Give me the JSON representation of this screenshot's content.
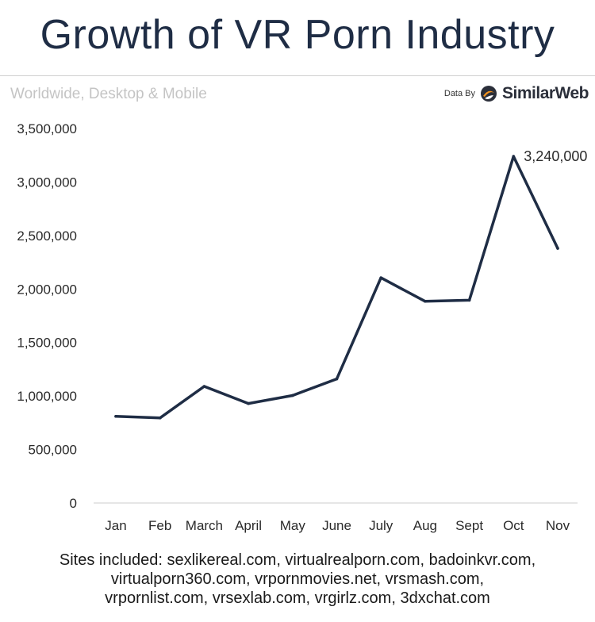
{
  "title": "Growth of VR Porn Industry",
  "subtitle": "Worldwide, Desktop & Mobile",
  "source": {
    "prefix": "Data By",
    "brand": "SimilarWeb",
    "brand_color": "#f7941d"
  },
  "footer": {
    "line1": "Sites included: sexlikereal.com, virtualrealporn.com, badoinkvr.com,",
    "line2": "virtualporn360.com, vrpornmovies.net, vrsmash.com,",
    "line3": "vrpornlist.com, vrsexlab.com, vrgirlz.com, 3dxchat.com"
  },
  "chart_data": {
    "type": "line",
    "title": "Growth of VR Porn Industry",
    "subtitle": "Worldwide, Desktop & Mobile",
    "xlabel": "",
    "ylabel": "",
    "categories": [
      "Jan",
      "Feb",
      "March",
      "April",
      "May",
      "June",
      "July",
      "Aug",
      "Sept",
      "Oct",
      "Nov"
    ],
    "series": [
      {
        "values": [
          810000,
          795000,
          1090000,
          930000,
          1005000,
          1160000,
          2105000,
          1885000,
          1895000,
          3240000,
          2380000
        ],
        "color": "#1f2d45"
      }
    ],
    "ylim": [
      0,
      3500000
    ],
    "yticks": [
      0,
      500000,
      1000000,
      1500000,
      2000000,
      2500000,
      3000000,
      3500000
    ],
    "ytick_labels": [
      "0",
      "500,000",
      "1,000,000",
      "1,500,000",
      "2,000,000",
      "2,500,000",
      "3,000,000",
      "3,500,000"
    ],
    "grid": false,
    "annotations": [
      {
        "category": "Oct",
        "value": 3240000,
        "text": "3,240,000"
      }
    ]
  }
}
